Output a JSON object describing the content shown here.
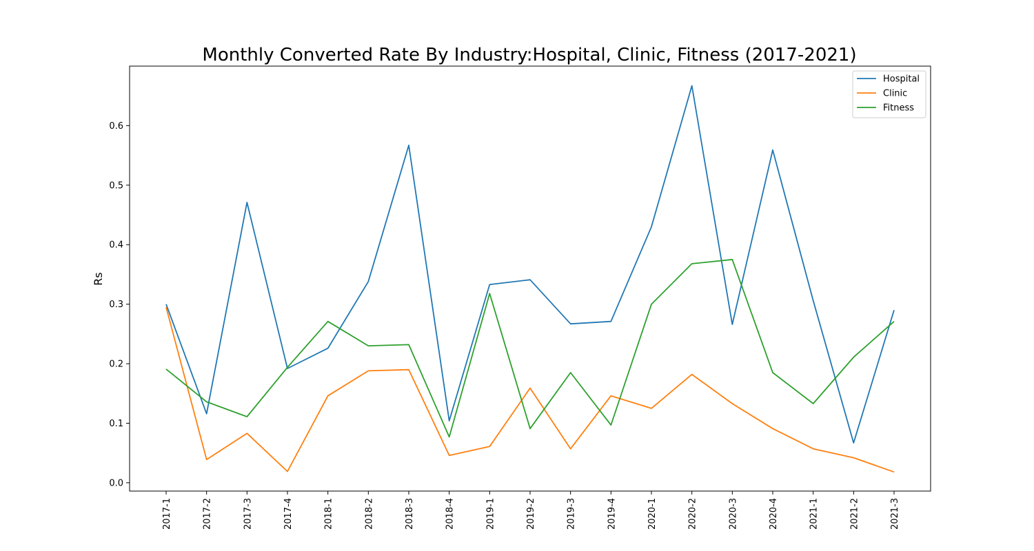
{
  "chart_data": {
    "type": "line",
    "title": "Monthly Converted Rate By Industry:Hospital, Clinic, Fitness (2017-2021)",
    "xlabel": "",
    "ylabel": "Rs",
    "categories": [
      "2017-1",
      "2017-2",
      "2017-3",
      "2017-4",
      "2018-1",
      "2018-2",
      "2018-3",
      "2018-4",
      "2019-1",
      "2019-2",
      "2019-3",
      "2019-4",
      "2020-1",
      "2020-2",
      "2020-3",
      "2020-4",
      "2021-1",
      "2021-2",
      "2021-3"
    ],
    "yticks": [
      "0.0",
      "0.1",
      "0.2",
      "0.3",
      "0.4",
      "0.5",
      "0.6"
    ],
    "ylim": [
      -0.014,
      0.7
    ],
    "grid": false,
    "legend_position": "top-right",
    "series": [
      {
        "name": "Hospital",
        "color": "#1f77b4",
        "values": [
          0.3,
          0.116,
          0.471,
          0.192,
          0.226,
          0.338,
          0.567,
          0.104,
          0.333,
          0.341,
          0.267,
          0.271,
          0.43,
          0.667,
          0.266,
          0.559,
          0.306,
          0.067,
          0.29
        ]
      },
      {
        "name": "Clinic",
        "color": "#ff7f0e",
        "values": [
          0.295,
          0.039,
          0.083,
          0.019,
          0.146,
          0.188,
          0.19,
          0.046,
          0.061,
          0.159,
          0.057,
          0.146,
          0.125,
          0.182,
          0.133,
          0.091,
          0.057,
          0.042,
          0.018
        ]
      },
      {
        "name": "Fitness",
        "color": "#2ca02c",
        "values": [
          0.191,
          0.136,
          0.111,
          0.194,
          0.271,
          0.23,
          0.232,
          0.077,
          0.318,
          0.091,
          0.185,
          0.097,
          0.3,
          0.368,
          0.375,
          0.185,
          0.133,
          0.211,
          0.271
        ]
      }
    ]
  }
}
